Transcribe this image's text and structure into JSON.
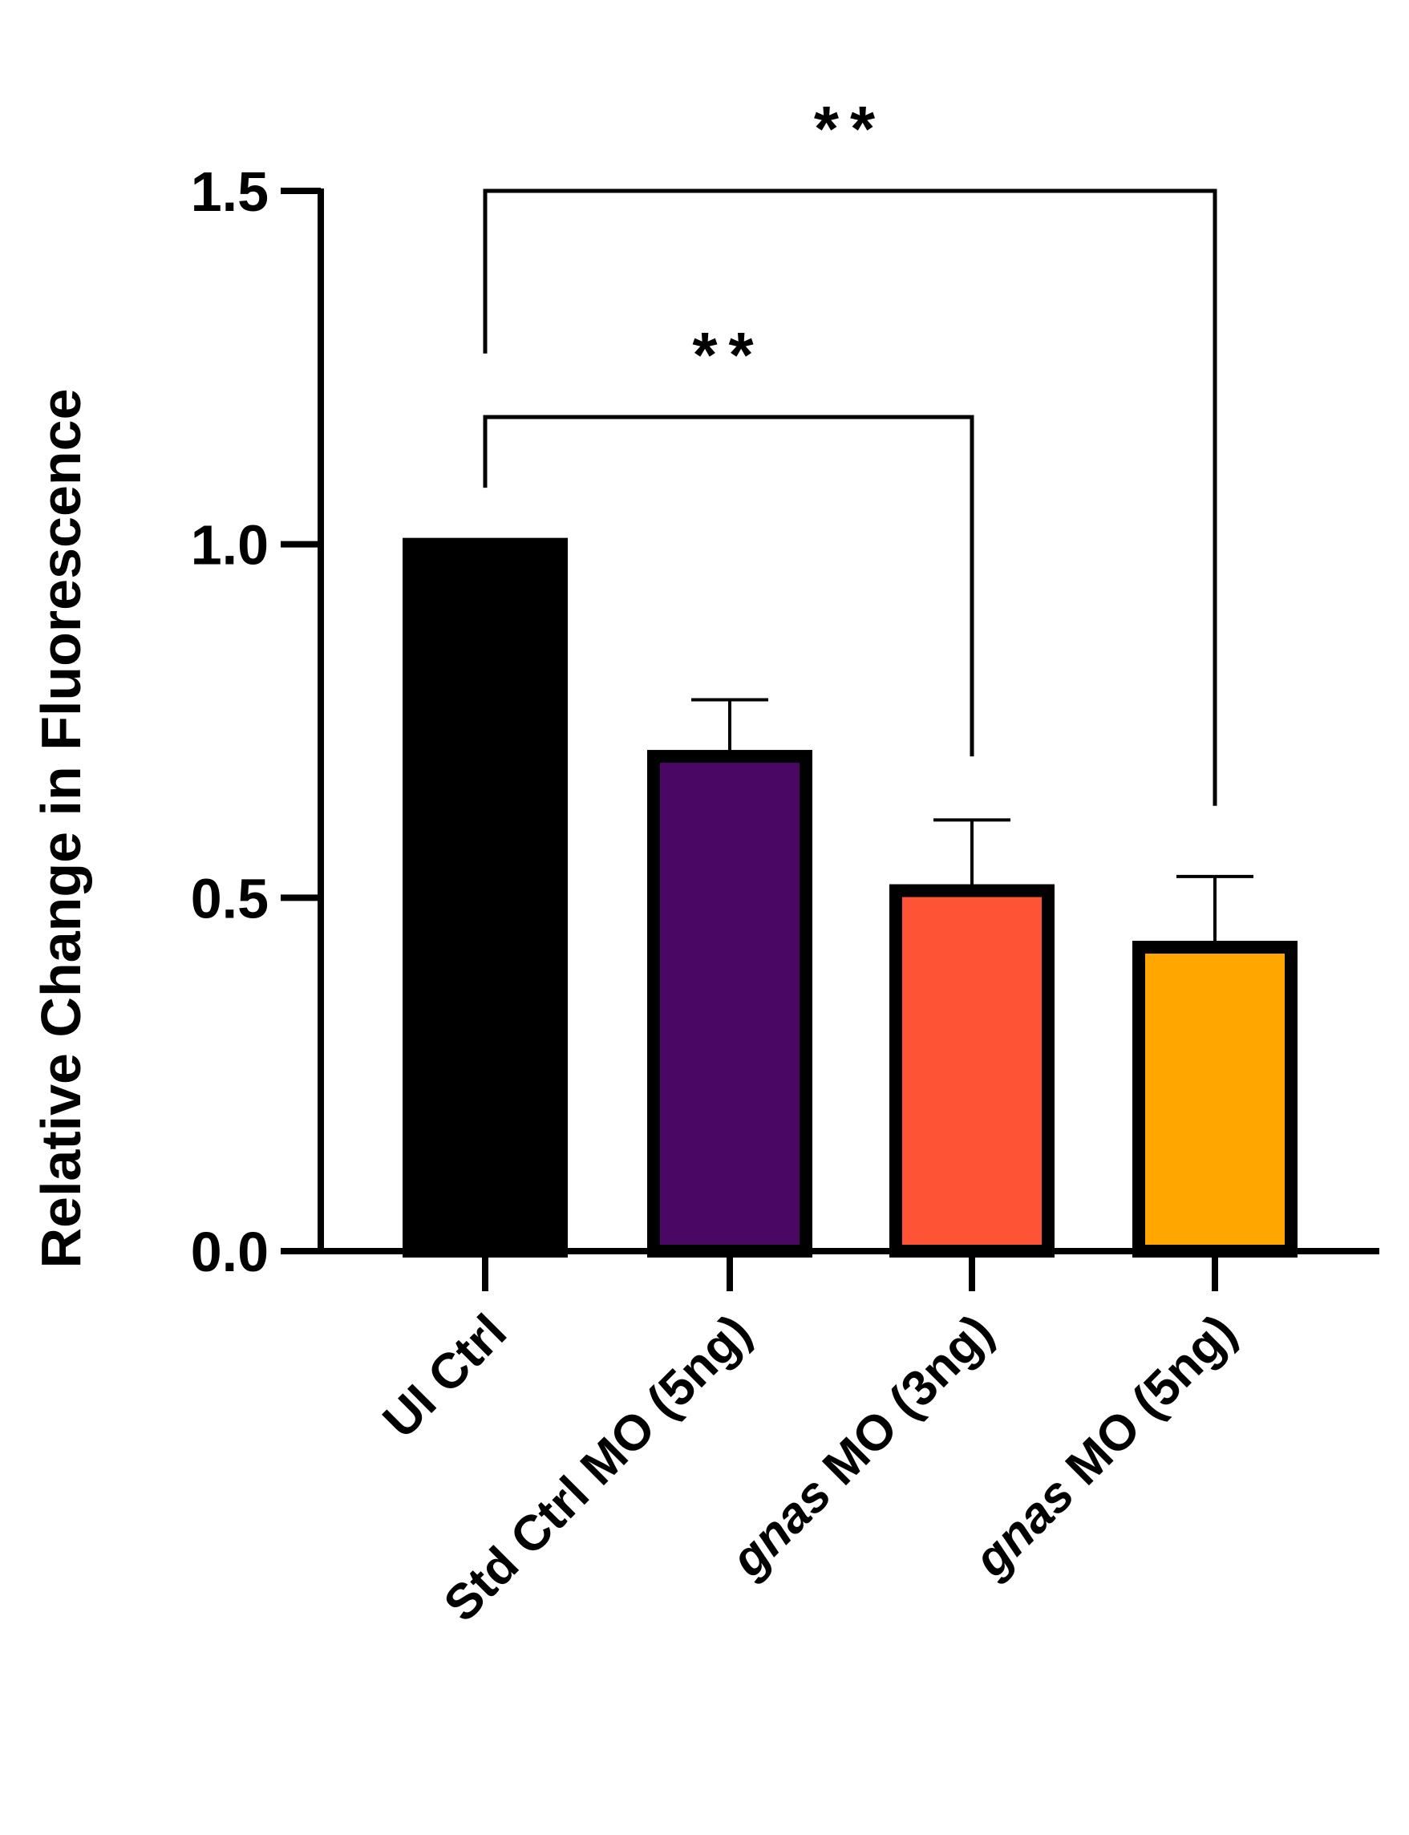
{
  "chart_data": {
    "type": "bar",
    "title": "",
    "xlabel": "",
    "ylabel": "Relative Change in Fluorescence",
    "ylim": [
      0,
      1.5
    ],
    "yticks": [
      "0.0",
      "0.5",
      "1.0",
      "1.5"
    ],
    "categories": [
      {
        "name": "UI Ctrl",
        "italic": ""
      },
      {
        "name": "Std Ctrl MO (5ng)",
        "italic": ""
      },
      {
        "name": " MO (3ng)",
        "italic": "gnas"
      },
      {
        "name": " MO (5ng)",
        "italic": "gnas"
      }
    ],
    "values": [
      1.0,
      0.7,
      0.51,
      0.43
    ],
    "errors": [
      0.0,
      0.08,
      0.1,
      0.1
    ],
    "colors": [
      "#000000",
      "#4a0764",
      "#ff5336",
      "#ffa600"
    ],
    "grid": false,
    "significance": [
      {
        "from": 0,
        "to": 2,
        "label": "**",
        "bar_y": 1.18,
        "left_bottom": 1.08,
        "right_bottom": 0.7
      },
      {
        "from": 0,
        "to": 3,
        "label": "**",
        "bar_y": 1.5,
        "left_bottom": 1.27,
        "right_bottom": 0.63
      }
    ]
  }
}
